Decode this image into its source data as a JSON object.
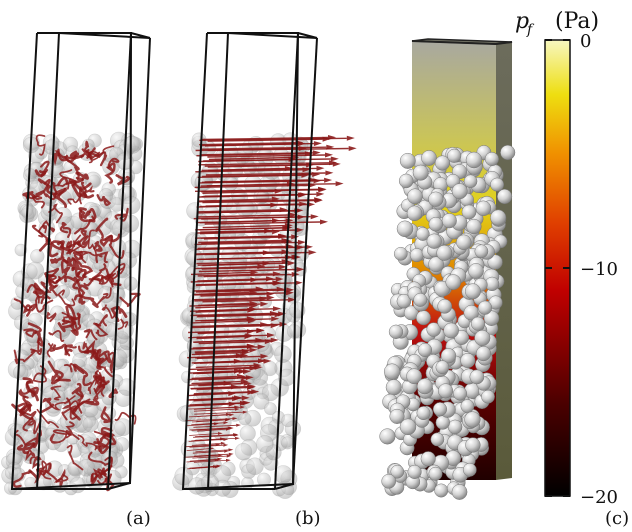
{
  "figure": {
    "panels": [
      {
        "label": "(a)"
      },
      {
        "label": "(b)"
      },
      {
        "label": "(c)"
      }
    ],
    "colorbar": {
      "title_symbol": "p",
      "title_subscript": "f",
      "title_unit": "(Pa)",
      "ticks": [
        {
          "value": 0,
          "label": "0"
        },
        {
          "value": -10,
          "label": "−10"
        },
        {
          "value": -20,
          "label": "−20"
        }
      ],
      "range": [
        -20,
        0
      ],
      "colors": [
        "#000000",
        "#5a0000",
        "#b00000",
        "#e03a00",
        "#f08a00",
        "#f5d400",
        "#f7f7c0"
      ]
    },
    "colors": {
      "particle": "#c9c9c9",
      "particle_highlight": "#ffffff",
      "streamline": "#8b1a1a",
      "arrow": "#8b1a1a",
      "box_edge": "#111111"
    }
  }
}
